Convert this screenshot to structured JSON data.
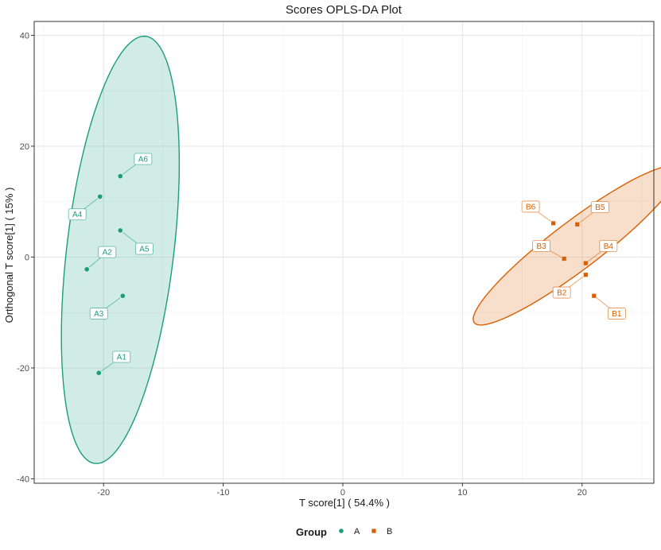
{
  "chart_data": {
    "type": "scatter",
    "title": "Scores OPLS-DA Plot",
    "xlabel": "T score[1] ( 54.4% )",
    "ylabel": "Orthogonal T score[1] ( 15% )",
    "xlim": [
      -25.8,
      26
    ],
    "ylim": [
      -40.8,
      42.5
    ],
    "xticks": [
      -20,
      -10,
      0,
      10,
      20
    ],
    "yticks": [
      -40,
      -20,
      0,
      20,
      40
    ],
    "grid": true,
    "legend": {
      "title": "Group",
      "position": "bottom"
    },
    "series": [
      {
        "name": "A",
        "color": "#1b9e77",
        "marker": "circle",
        "ellipse": {
          "cx": -18.6,
          "cy": 1.3,
          "rx": 4.5,
          "ry": 38.6,
          "angle_deg": -3
        },
        "points": [
          {
            "label": "A1",
            "x": -20.4,
            "y": -20.9,
            "lx": -18.5,
            "ly": -18.0
          },
          {
            "label": "A2",
            "x": -21.4,
            "y": -2.2,
            "lx": -19.7,
            "ly": 0.9
          },
          {
            "label": "A3",
            "x": -18.4,
            "y": -7.0,
            "lx": -20.4,
            "ly": -10.2
          },
          {
            "label": "A4",
            "x": -20.3,
            "y": 10.9,
            "lx": -22.2,
            "ly": 7.7
          },
          {
            "label": "A5",
            "x": -18.6,
            "y": 4.8,
            "lx": -16.6,
            "ly": 1.5
          },
          {
            "label": "A6",
            "x": -18.6,
            "y": 14.6,
            "lx": -16.7,
            "ly": 17.7
          }
        ]
      },
      {
        "name": "B",
        "color": "#d95f02",
        "marker": "square",
        "ellipse": {
          "cx": 19.5,
          "cy": 2.1,
          "rx": 2.8,
          "ry": 16.5,
          "angle_deg": -30
        },
        "points": [
          {
            "label": "B1",
            "x": 21.0,
            "y": -7.0,
            "lx": 22.9,
            "ly": -10.2
          },
          {
            "label": "B2",
            "x": 20.3,
            "y": -3.2,
            "lx": 18.3,
            "ly": -6.4
          },
          {
            "label": "B3",
            "x": 18.5,
            "y": -0.3,
            "lx": 16.6,
            "ly": 2.0
          },
          {
            "label": "B4",
            "x": 20.3,
            "y": -1.1,
            "lx": 22.2,
            "ly": 2.0
          },
          {
            "label": "B5",
            "x": 19.6,
            "y": 5.9,
            "lx": 21.5,
            "ly": 9.0
          },
          {
            "label": "B6",
            "x": 17.6,
            "y": 6.1,
            "lx": 15.7,
            "ly": 9.1
          }
        ]
      }
    ]
  }
}
